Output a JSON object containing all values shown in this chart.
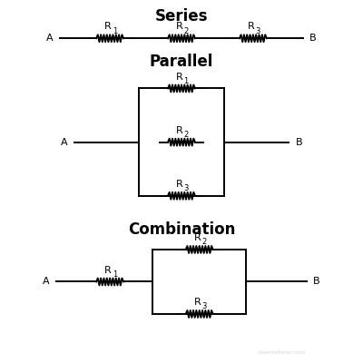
{
  "bg_color": "#ffffff",
  "line_color": "#000000",
  "title_color": "#000000",
  "series_title": "Series",
  "parallel_title": "Parallel",
  "combo_title": "Combination",
  "title_fontsize": 12,
  "label_fontsize": 8,
  "sub_fontsize": 6,
  "lw": 1.4
}
